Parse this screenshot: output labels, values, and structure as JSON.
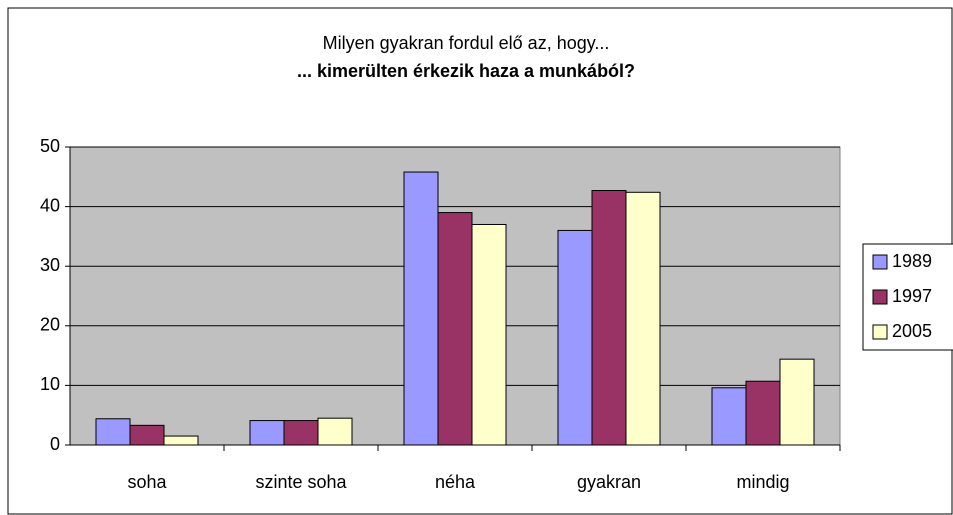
{
  "chart_data": {
    "type": "bar",
    "title": "Milyen gyakran fordul elő az, hogy...",
    "subtitle": "... kimerülten érkezik haza a munkából?",
    "categories": [
      "soha",
      "szinte soha",
      "néha",
      "gyakran",
      "mindig"
    ],
    "series": [
      {
        "name": "1989",
        "color": "#9999ff",
        "values": [
          4.4,
          4.1,
          45.8,
          36,
          9.6
        ]
      },
      {
        "name": "1997",
        "color": "#993366",
        "values": [
          3.3,
          4.1,
          39,
          42.7,
          10.7
        ]
      },
      {
        "name": "2005",
        "color": "#ffffcc",
        "values": [
          1.5,
          4.5,
          37,
          42.4,
          14.4
        ]
      }
    ],
    "ylim": [
      0,
      50
    ],
    "yticks": [
      0,
      10,
      20,
      30,
      40,
      50
    ],
    "grid": true,
    "legend": "right"
  }
}
